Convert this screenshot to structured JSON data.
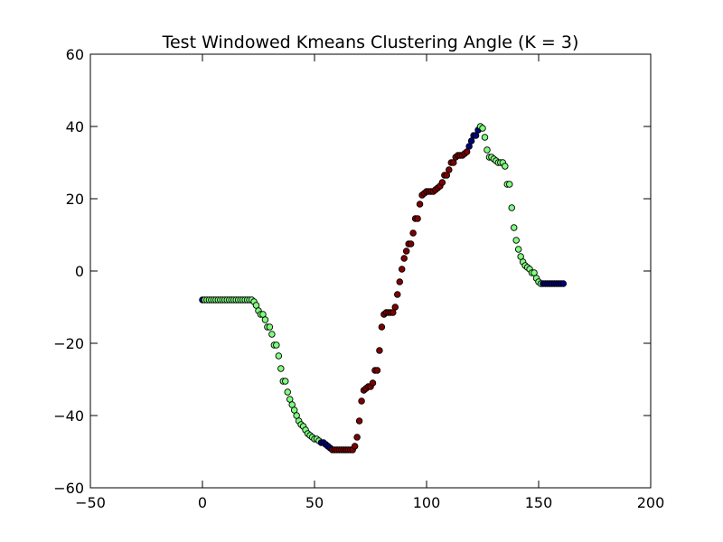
{
  "chart_data": {
    "type": "scatter",
    "title": "Test Windowed Kmeans Clustering Angle (K = 3)",
    "xlabel": "",
    "ylabel": "",
    "xlim": [
      -50,
      200
    ],
    "ylim": [
      -60,
      60
    ],
    "xticks": [
      -50,
      0,
      50,
      100,
      150,
      200
    ],
    "yticks": [
      -60,
      -40,
      -20,
      0,
      20,
      40,
      60
    ],
    "xtick_labels": [
      "−50",
      "0",
      "50",
      "100",
      "150",
      "200"
    ],
    "ytick_labels": [
      "−60",
      "−40",
      "−20",
      "0",
      "20",
      "40",
      "60"
    ],
    "grid": false,
    "legend": "none",
    "cluster_colors": [
      "#00007f",
      "#7fff7f",
      "#7f0000"
    ],
    "marker_edge_color": "#000000",
    "points": [
      {
        "x": 0,
        "y": -8,
        "c": 0
      },
      {
        "x": 1,
        "y": -8,
        "c": 1
      },
      {
        "x": 2,
        "y": -8,
        "c": 1
      },
      {
        "x": 3,
        "y": -8,
        "c": 1
      },
      {
        "x": 4,
        "y": -8,
        "c": 1
      },
      {
        "x": 5,
        "y": -8,
        "c": 1
      },
      {
        "x": 6,
        "y": -8,
        "c": 1
      },
      {
        "x": 7,
        "y": -8,
        "c": 1
      },
      {
        "x": 8,
        "y": -8,
        "c": 1
      },
      {
        "x": 9,
        "y": -8,
        "c": 1
      },
      {
        "x": 10,
        "y": -8,
        "c": 1
      },
      {
        "x": 11,
        "y": -8,
        "c": 1
      },
      {
        "x": 12,
        "y": -8,
        "c": 1
      },
      {
        "x": 13,
        "y": -8,
        "c": 1
      },
      {
        "x": 14,
        "y": -8,
        "c": 1
      },
      {
        "x": 15,
        "y": -8,
        "c": 1
      },
      {
        "x": 16,
        "y": -8,
        "c": 1
      },
      {
        "x": 17,
        "y": -8,
        "c": 1
      },
      {
        "x": 18,
        "y": -8,
        "c": 1
      },
      {
        "x": 19,
        "y": -8,
        "c": 1
      },
      {
        "x": 20,
        "y": -8,
        "c": 1
      },
      {
        "x": 21,
        "y": -8,
        "c": 1
      },
      {
        "x": 22,
        "y": -8,
        "c": 1
      },
      {
        "x": 23,
        "y": -8.5,
        "c": 1
      },
      {
        "x": 24,
        "y": -9.5,
        "c": 1
      },
      {
        "x": 25,
        "y": -11,
        "c": 1
      },
      {
        "x": 26,
        "y": -12,
        "c": 1
      },
      {
        "x": 27,
        "y": -12,
        "c": 1
      },
      {
        "x": 28,
        "y": -13.5,
        "c": 1
      },
      {
        "x": 29,
        "y": -15.5,
        "c": 1
      },
      {
        "x": 30,
        "y": -15.5,
        "c": 1
      },
      {
        "x": 31,
        "y": -17.5,
        "c": 1
      },
      {
        "x": 32,
        "y": -20.5,
        "c": 1
      },
      {
        "x": 33,
        "y": -20.5,
        "c": 1
      },
      {
        "x": 34,
        "y": -23.5,
        "c": 1
      },
      {
        "x": 35,
        "y": -27,
        "c": 1
      },
      {
        "x": 36,
        "y": -30.5,
        "c": 1
      },
      {
        "x": 37,
        "y": -30.5,
        "c": 1
      },
      {
        "x": 38,
        "y": -33.5,
        "c": 1
      },
      {
        "x": 39,
        "y": -35.5,
        "c": 1
      },
      {
        "x": 40,
        "y": -37,
        "c": 1
      },
      {
        "x": 41,
        "y": -38.5,
        "c": 1
      },
      {
        "x": 42,
        "y": -40,
        "c": 1
      },
      {
        "x": 43,
        "y": -41.5,
        "c": 1
      },
      {
        "x": 44,
        "y": -42.5,
        "c": 1
      },
      {
        "x": 45,
        "y": -43,
        "c": 1
      },
      {
        "x": 46,
        "y": -44,
        "c": 1
      },
      {
        "x": 47,
        "y": -45,
        "c": 1
      },
      {
        "x": 48,
        "y": -45.5,
        "c": 1
      },
      {
        "x": 49,
        "y": -46,
        "c": 1
      },
      {
        "x": 50,
        "y": -46.5,
        "c": 1
      },
      {
        "x": 51,
        "y": -46.5,
        "c": 1
      },
      {
        "x": 52,
        "y": -47,
        "c": 1
      },
      {
        "x": 53,
        "y": -47.5,
        "c": 0
      },
      {
        "x": 54,
        "y": -47.5,
        "c": 0
      },
      {
        "x": 55,
        "y": -48,
        "c": 0
      },
      {
        "x": 56,
        "y": -48.5,
        "c": 0
      },
      {
        "x": 57,
        "y": -49,
        "c": 0
      },
      {
        "x": 58,
        "y": -49.5,
        "c": 2
      },
      {
        "x": 59,
        "y": -49.5,
        "c": 2
      },
      {
        "x": 60,
        "y": -49.5,
        "c": 2
      },
      {
        "x": 61,
        "y": -49.5,
        "c": 2
      },
      {
        "x": 62,
        "y": -49.5,
        "c": 2
      },
      {
        "x": 63,
        "y": -49.5,
        "c": 2
      },
      {
        "x": 64,
        "y": -49.5,
        "c": 2
      },
      {
        "x": 65,
        "y": -49.5,
        "c": 2
      },
      {
        "x": 66,
        "y": -49.5,
        "c": 2
      },
      {
        "x": 67,
        "y": -49.5,
        "c": 2
      },
      {
        "x": 68,
        "y": -48.5,
        "c": 2
      },
      {
        "x": 69,
        "y": -46,
        "c": 2
      },
      {
        "x": 70,
        "y": -41.5,
        "c": 2
      },
      {
        "x": 71,
        "y": -36,
        "c": 2
      },
      {
        "x": 72,
        "y": -33,
        "c": 2
      },
      {
        "x": 73,
        "y": -32.5,
        "c": 2
      },
      {
        "x": 74,
        "y": -32,
        "c": 2
      },
      {
        "x": 75,
        "y": -32,
        "c": 2
      },
      {
        "x": 76,
        "y": -31,
        "c": 2
      },
      {
        "x": 77,
        "y": -27.5,
        "c": 2
      },
      {
        "x": 78,
        "y": -27.5,
        "c": 2
      },
      {
        "x": 79,
        "y": -22,
        "c": 2
      },
      {
        "x": 80,
        "y": -15.5,
        "c": 2
      },
      {
        "x": 81,
        "y": -12,
        "c": 2
      },
      {
        "x": 82,
        "y": -11.5,
        "c": 2
      },
      {
        "x": 83,
        "y": -11.5,
        "c": 2
      },
      {
        "x": 84,
        "y": -11.5,
        "c": 2
      },
      {
        "x": 85,
        "y": -11.5,
        "c": 2
      },
      {
        "x": 86,
        "y": -10,
        "c": 2
      },
      {
        "x": 87,
        "y": -6.5,
        "c": 2
      },
      {
        "x": 88,
        "y": -3,
        "c": 2
      },
      {
        "x": 89,
        "y": 0.5,
        "c": 2
      },
      {
        "x": 90,
        "y": 3.5,
        "c": 2
      },
      {
        "x": 91,
        "y": 5.5,
        "c": 2
      },
      {
        "x": 92,
        "y": 7.5,
        "c": 2
      },
      {
        "x": 93,
        "y": 7.5,
        "c": 2
      },
      {
        "x": 94,
        "y": 10.5,
        "c": 2
      },
      {
        "x": 95,
        "y": 14.5,
        "c": 2
      },
      {
        "x": 96,
        "y": 14.5,
        "c": 2
      },
      {
        "x": 97,
        "y": 18.5,
        "c": 2
      },
      {
        "x": 98,
        "y": 21,
        "c": 2
      },
      {
        "x": 99,
        "y": 21.5,
        "c": 2
      },
      {
        "x": 100,
        "y": 22,
        "c": 2
      },
      {
        "x": 101,
        "y": 22,
        "c": 2
      },
      {
        "x": 102,
        "y": 22,
        "c": 2
      },
      {
        "x": 103,
        "y": 22,
        "c": 2
      },
      {
        "x": 104,
        "y": 22.5,
        "c": 2
      },
      {
        "x": 105,
        "y": 23,
        "c": 2
      },
      {
        "x": 106,
        "y": 23.5,
        "c": 2
      },
      {
        "x": 107,
        "y": 24.5,
        "c": 2
      },
      {
        "x": 108,
        "y": 26.5,
        "c": 2
      },
      {
        "x": 109,
        "y": 26.5,
        "c": 2
      },
      {
        "x": 110,
        "y": 28,
        "c": 2
      },
      {
        "x": 111,
        "y": 30,
        "c": 2
      },
      {
        "x": 112,
        "y": 30,
        "c": 2
      },
      {
        "x": 113,
        "y": 31.5,
        "c": 2
      },
      {
        "x": 114,
        "y": 32,
        "c": 2
      },
      {
        "x": 115,
        "y": 32,
        "c": 2
      },
      {
        "x": 116,
        "y": 32,
        "c": 2
      },
      {
        "x": 117,
        "y": 32.5,
        "c": 2
      },
      {
        "x": 118,
        "y": 33,
        "c": 2
      },
      {
        "x": 119,
        "y": 34.5,
        "c": 0
      },
      {
        "x": 120,
        "y": 36,
        "c": 0
      },
      {
        "x": 121,
        "y": 37.5,
        "c": 0
      },
      {
        "x": 122,
        "y": 37.5,
        "c": 0
      },
      {
        "x": 123,
        "y": 39,
        "c": 0
      },
      {
        "x": 124,
        "y": 40,
        "c": 1
      },
      {
        "x": 125,
        "y": 39.5,
        "c": 1
      },
      {
        "x": 126,
        "y": 37,
        "c": 1
      },
      {
        "x": 127,
        "y": 33.5,
        "c": 1
      },
      {
        "x": 128,
        "y": 31.5,
        "c": 1
      },
      {
        "x": 129,
        "y": 31.5,
        "c": 1
      },
      {
        "x": 130,
        "y": 31,
        "c": 1
      },
      {
        "x": 131,
        "y": 30.5,
        "c": 1
      },
      {
        "x": 132,
        "y": 30,
        "c": 1
      },
      {
        "x": 133,
        "y": 30,
        "c": 1
      },
      {
        "x": 134,
        "y": 30,
        "c": 1
      },
      {
        "x": 135,
        "y": 29,
        "c": 1
      },
      {
        "x": 136,
        "y": 24,
        "c": 1
      },
      {
        "x": 137,
        "y": 24,
        "c": 1
      },
      {
        "x": 138,
        "y": 17.5,
        "c": 1
      },
      {
        "x": 139,
        "y": 12,
        "c": 1
      },
      {
        "x": 140,
        "y": 8.5,
        "c": 1
      },
      {
        "x": 141,
        "y": 6,
        "c": 1
      },
      {
        "x": 142,
        "y": 4,
        "c": 1
      },
      {
        "x": 143,
        "y": 2.5,
        "c": 1
      },
      {
        "x": 144,
        "y": 1.5,
        "c": 1
      },
      {
        "x": 145,
        "y": 1,
        "c": 1
      },
      {
        "x": 146,
        "y": 0.5,
        "c": 1
      },
      {
        "x": 147,
        "y": -0.5,
        "c": 1
      },
      {
        "x": 148,
        "y": -0.5,
        "c": 1
      },
      {
        "x": 149,
        "y": -2,
        "c": 1
      },
      {
        "x": 150,
        "y": -3,
        "c": 1
      },
      {
        "x": 151,
        "y": -3.5,
        "c": 1
      },
      {
        "x": 152,
        "y": -3.5,
        "c": 0
      },
      {
        "x": 153,
        "y": -3.5,
        "c": 0
      },
      {
        "x": 154,
        "y": -3.5,
        "c": 0
      },
      {
        "x": 155,
        "y": -3.5,
        "c": 0
      },
      {
        "x": 156,
        "y": -3.5,
        "c": 0
      },
      {
        "x": 157,
        "y": -3.5,
        "c": 0
      },
      {
        "x": 158,
        "y": -3.5,
        "c": 0
      },
      {
        "x": 159,
        "y": -3.5,
        "c": 0
      },
      {
        "x": 160,
        "y": -3.5,
        "c": 0
      },
      {
        "x": 161,
        "y": -3.5,
        "c": 0
      }
    ]
  }
}
